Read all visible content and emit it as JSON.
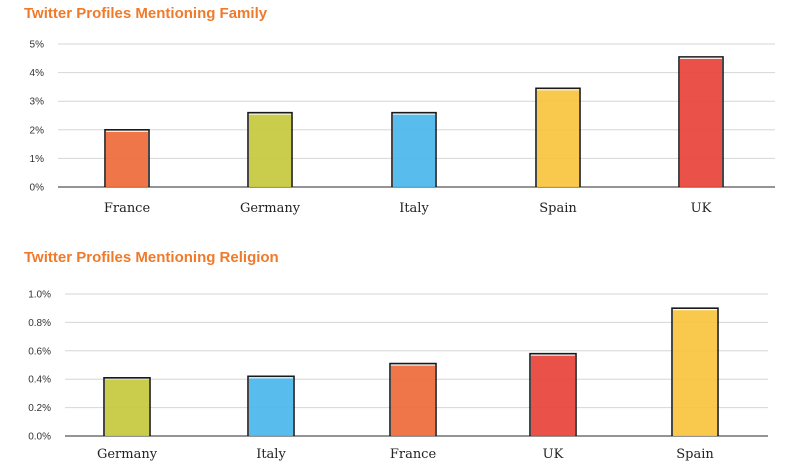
{
  "chart_data": [
    {
      "type": "bar",
      "title": "Twitter Profiles Mentioning Family",
      "categories": [
        "France",
        "Germany",
        "Italy",
        "Spain",
        "UK"
      ],
      "values": [
        2.0,
        2.6,
        2.6,
        3.45,
        4.55
      ],
      "colors": [
        "#ee6a3a",
        "#c6c93c",
        "#4ab6ea",
        "#f7c43e",
        "#e8433a"
      ],
      "yticks": [
        "0%",
        "1%",
        "2%",
        "3%",
        "4%",
        "5%"
      ],
      "ylim": [
        0,
        5
      ],
      "xlabel": "",
      "ylabel": "",
      "grid": true
    },
    {
      "type": "bar",
      "title": "Twitter Profiles Mentioning Religion",
      "categories": [
        "Germany",
        "Italy",
        "France",
        "UK",
        "Spain"
      ],
      "values": [
        0.41,
        0.42,
        0.51,
        0.58,
        0.9
      ],
      "colors": [
        "#c6c93c",
        "#4ab6ea",
        "#ee6a3a",
        "#e8433a",
        "#f7c43e"
      ],
      "yticks": [
        "0.0%",
        "0.2%",
        "0.4%",
        "0.6%",
        "0.8%",
        "1.0%"
      ],
      "ylim": [
        0,
        1.0
      ],
      "xlabel": "",
      "ylabel": "",
      "grid": true
    }
  ]
}
